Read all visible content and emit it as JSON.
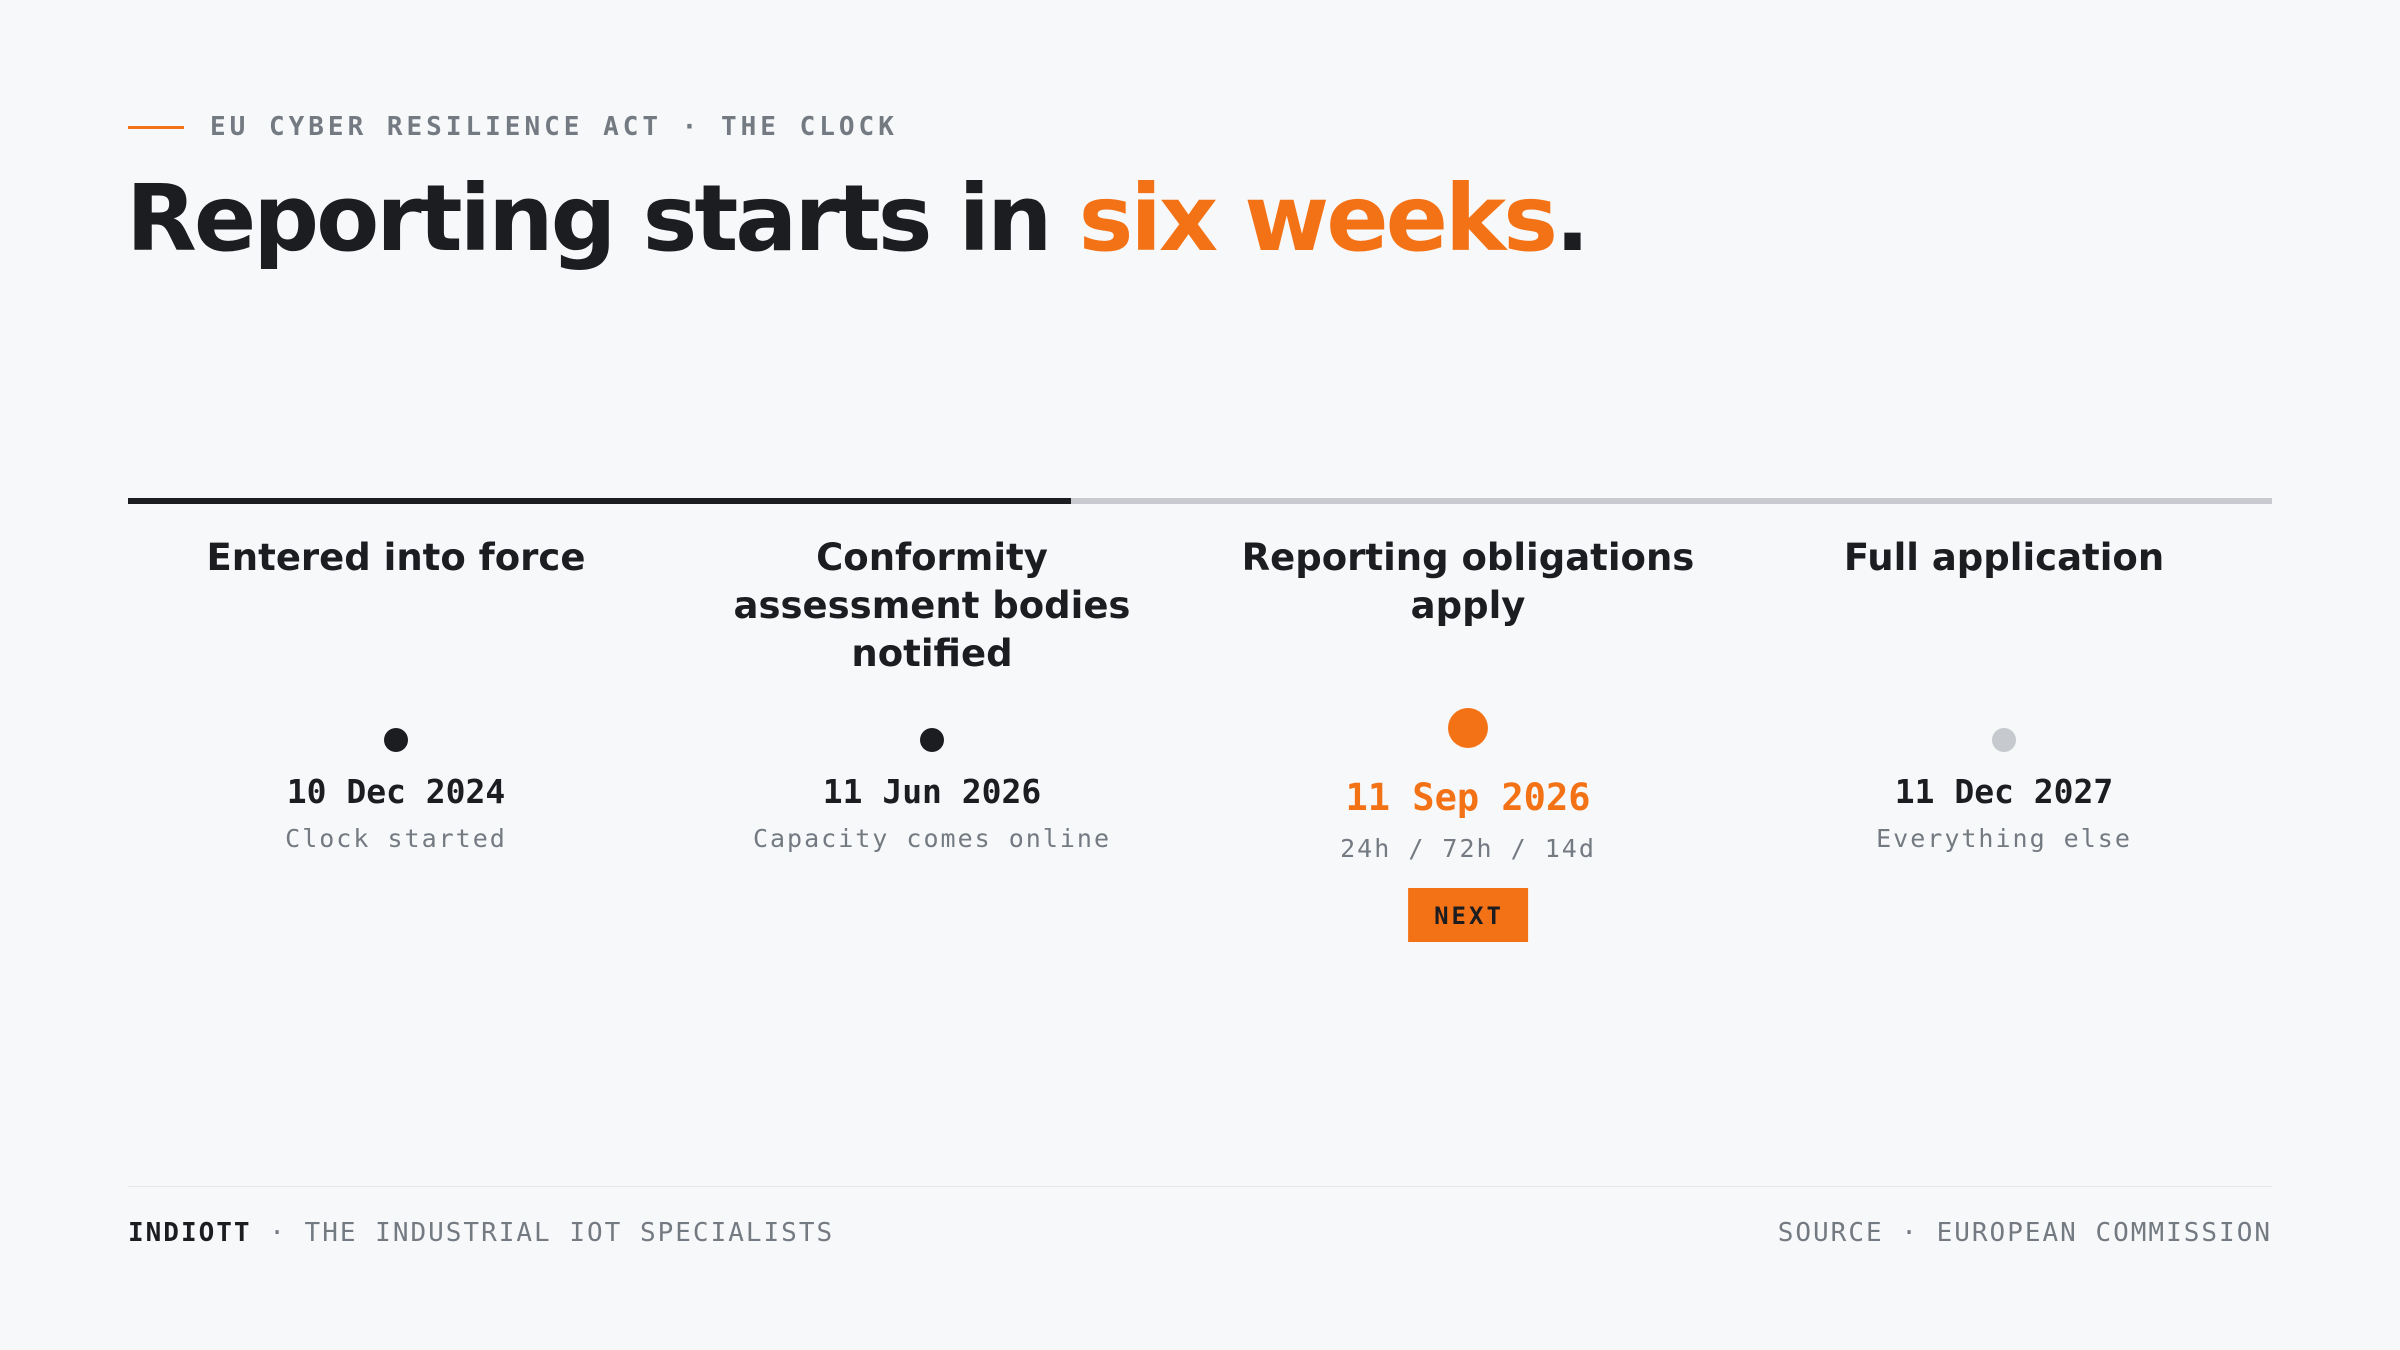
{
  "header": {
    "eyebrow": "EU CYBER RESILIENCE ACT · THE CLOCK",
    "headline_lead": "Reporting starts in ",
    "headline_accent": "six weeks",
    "headline_end": "."
  },
  "timeline": {
    "progress_fraction": 0.44,
    "milestones": [
      {
        "title": "Entered into force",
        "date": "10 Dec 2024",
        "note": "Clock started",
        "status": "done"
      },
      {
        "title": "Conformity assessment bodies notified",
        "date": "11 Jun 2026",
        "note": "Capacity comes online",
        "status": "done"
      },
      {
        "title": "Reporting obligations apply",
        "date": "11 Sep 2026",
        "note": "24h / 72h / 14d",
        "status": "next",
        "badge": "NEXT"
      },
      {
        "title": "Full application",
        "date": "11 Dec 2027",
        "note": "Everything else",
        "status": "future"
      }
    ]
  },
  "footer": {
    "brand": "INDIOTT",
    "separator": " · ",
    "tagline": "THE INDUSTRIAL IOT SPECIALISTS",
    "source": "SOURCE · EUROPEAN COMMISSION"
  },
  "colors": {
    "accent": "#f47216",
    "ink": "#1c1d21",
    "muted": "#737a82",
    "track_future": "#c8cad0",
    "dot_future": "#c6c9ce",
    "background": "#f7f8fa"
  }
}
